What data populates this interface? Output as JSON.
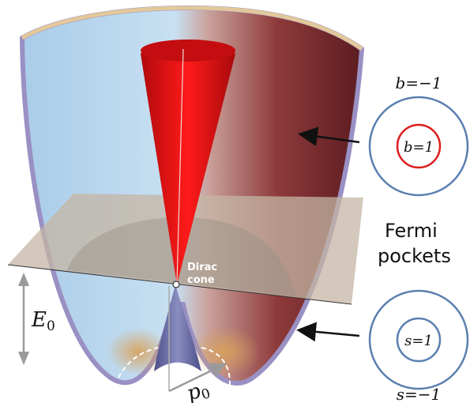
{
  "labels": {
    "dirac_line1": "Dirac",
    "dirac_line2": "cone",
    "energy": "E",
    "energy_sub": "0",
    "momentum": "p",
    "momentum_sub": "0",
    "fermi_line1": "Fermi",
    "fermi_line2": "pockets",
    "b_outer": "b=−1",
    "b_inner": "b=1",
    "s_inner": "s=1",
    "s_outer": "s=−1"
  },
  "colors": {
    "bowl_light": "#bcd9ef",
    "bowl_dark": "#6a2226",
    "cone": "#e00f12",
    "plane": "#c4b5a4",
    "circle_blue": "#5a7fb0",
    "circle_red": "#dd1d1d",
    "arrow": "#111111",
    "dim_arrow": "#999999"
  }
}
